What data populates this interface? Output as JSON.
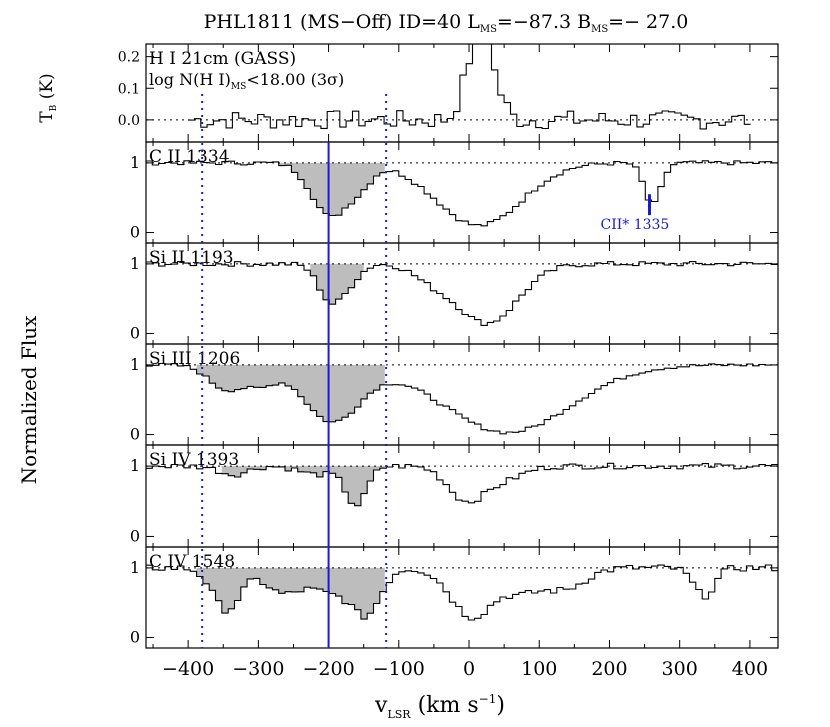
{
  "figure": {
    "title_parts": {
      "name": "PHL1811 (MS−Off) ID=40 L",
      "l_sub": "MS",
      "l_val": "=−87.3 B",
      "b_sub": "MS",
      "b_val": "=− 27.0"
    },
    "xlabel_parts": {
      "main": "v",
      "sub": "LSR",
      "units": " (km s",
      "sup": "−1",
      "close": ")"
    },
    "ylabel": "Normalized Flux",
    "top_ylabel_parts": {
      "main": "T",
      "sub": "B",
      "units": " (K)"
    },
    "x_ticks": [
      "−400",
      "−300",
      "−200",
      "−100",
      "0",
      "100",
      "200",
      "300",
      "400"
    ],
    "x_tick_values": [
      -400,
      -300,
      -200,
      -100,
      0,
      100,
      200,
      300,
      400
    ],
    "colors": {
      "line": "#000000",
      "fill": "#bdbdbd",
      "marker": "#1a1ad6"
    }
  },
  "chart_data": [
    {
      "type": "line",
      "panel": "hi-21cm",
      "label": "H I 21cm (GASS)",
      "note_parts": {
        "pre": "log N(H I)",
        "sub": "MS",
        "post": "<18.00 (3σ)"
      },
      "y_ticks": [
        "0.2",
        "0.1",
        "0.0"
      ],
      "y_tick_values": [
        0.2,
        0.1,
        0.0
      ],
      "ylim": [
        -0.07,
        0.24
      ],
      "xlim": [
        -460,
        440
      ],
      "x_range": [
        -400,
        400
      ],
      "features": [
        {
          "center": -5,
          "width": 12,
          "amp": 0.14
        },
        {
          "center": 15,
          "width": 9,
          "amp": 0.5
        },
        {
          "center": 38,
          "width": 10,
          "amp": 0.08
        }
      ],
      "noise_amplitude": 0.03
    },
    {
      "type": "line",
      "panel": "c-ii",
      "label": "C II 1334",
      "y_ticks": [
        "1",
        "0"
      ],
      "y_tick_values": [
        1,
        0
      ],
      "ylim": [
        -0.15,
        1.3
      ],
      "xlim": [
        -460,
        440
      ],
      "shaded_range": [
        -280,
        -120
      ],
      "features": [
        {
          "center": -230,
          "width": 20,
          "depth": 0.15
        },
        {
          "center": -200,
          "width": 22,
          "depth": 0.7
        },
        {
          "center": -160,
          "width": 18,
          "depth": 0.3
        },
        {
          "center": 10,
          "width": 60,
          "depth": 0.9
        },
        {
          "center": 257,
          "width": 12,
          "depth": 0.6
        }
      ],
      "marker": {
        "x": 257,
        "label": "CII* 1335"
      },
      "noise_amplitude": 0.03
    },
    {
      "type": "line",
      "panel": "si-ii",
      "label": "Si II 1193",
      "y_ticks": [
        "1",
        "0"
      ],
      "y_tick_values": [
        1,
        0
      ],
      "ylim": [
        -0.15,
        1.3
      ],
      "xlim": [
        -460,
        440
      ],
      "shaded_range": [
        -230,
        -150
      ],
      "features": [
        {
          "center": -200,
          "width": 18,
          "depth": 0.55
        },
        {
          "center": -170,
          "width": 15,
          "depth": 0.15
        },
        {
          "center": -60,
          "width": 25,
          "depth": 0.15
        },
        {
          "center": 20,
          "width": 45,
          "depth": 0.85
        }
      ],
      "noise_amplitude": 0.035
    },
    {
      "type": "line",
      "panel": "si-iii",
      "label": "Si III 1206",
      "y_ticks": [
        "1",
        "0"
      ],
      "y_tick_values": [
        1,
        0
      ],
      "ylim": [
        -0.15,
        1.3
      ],
      "xlim": [
        -460,
        440
      ],
      "shaded_range": [
        -390,
        -120
      ],
      "features": [
        {
          "center": -350,
          "width": 25,
          "depth": 0.35
        },
        {
          "center": -300,
          "width": 20,
          "depth": 0.25
        },
        {
          "center": -200,
          "width": 40,
          "depth": 0.8
        },
        {
          "center": 50,
          "width": 90,
          "depth": 0.97
        }
      ],
      "noise_amplitude": 0.025
    },
    {
      "type": "line",
      "panel": "si-iv",
      "label": "Si IV 1393",
      "y_ticks": [
        "1",
        "0"
      ],
      "y_tick_values": [
        1,
        0
      ],
      "ylim": [
        -0.15,
        1.3
      ],
      "xlim": [
        -460,
        440
      ],
      "shaded_range": [
        -360,
        -120
      ],
      "features": [
        {
          "center": -340,
          "width": 20,
          "depth": 0.12
        },
        {
          "center": -220,
          "width": 25,
          "depth": 0.12
        },
        {
          "center": -165,
          "width": 15,
          "depth": 0.55
        },
        {
          "center": -10,
          "width": 25,
          "depth": 0.45
        },
        {
          "center": 40,
          "width": 30,
          "depth": 0.2
        }
      ],
      "noise_amplitude": 0.04
    },
    {
      "type": "line",
      "panel": "c-iv",
      "label": "C IV 1548",
      "y_ticks": [
        "1",
        "0"
      ],
      "y_tick_values": [
        1,
        0
      ],
      "ylim": [
        -0.15,
        1.3
      ],
      "xlim": [
        -460,
        440
      ],
      "shaded_range": [
        -390,
        -120
      ],
      "features": [
        {
          "center": -350,
          "width": 20,
          "depth": 0.6
        },
        {
          "center": -270,
          "width": 25,
          "depth": 0.35
        },
        {
          "center": -200,
          "width": 30,
          "depth": 0.35
        },
        {
          "center": -150,
          "width": 20,
          "depth": 0.6
        },
        {
          "center": 0,
          "width": 30,
          "depth": 0.7
        },
        {
          "center": 70,
          "width": 25,
          "depth": 0.3
        },
        {
          "center": 130,
          "width": 30,
          "depth": 0.3
        },
        {
          "center": 330,
          "width": 15,
          "depth": 0.4
        }
      ],
      "noise_amplitude": 0.05
    }
  ],
  "reference_lines": {
    "solid": -200,
    "dotted": [
      -380,
      -118
    ]
  }
}
